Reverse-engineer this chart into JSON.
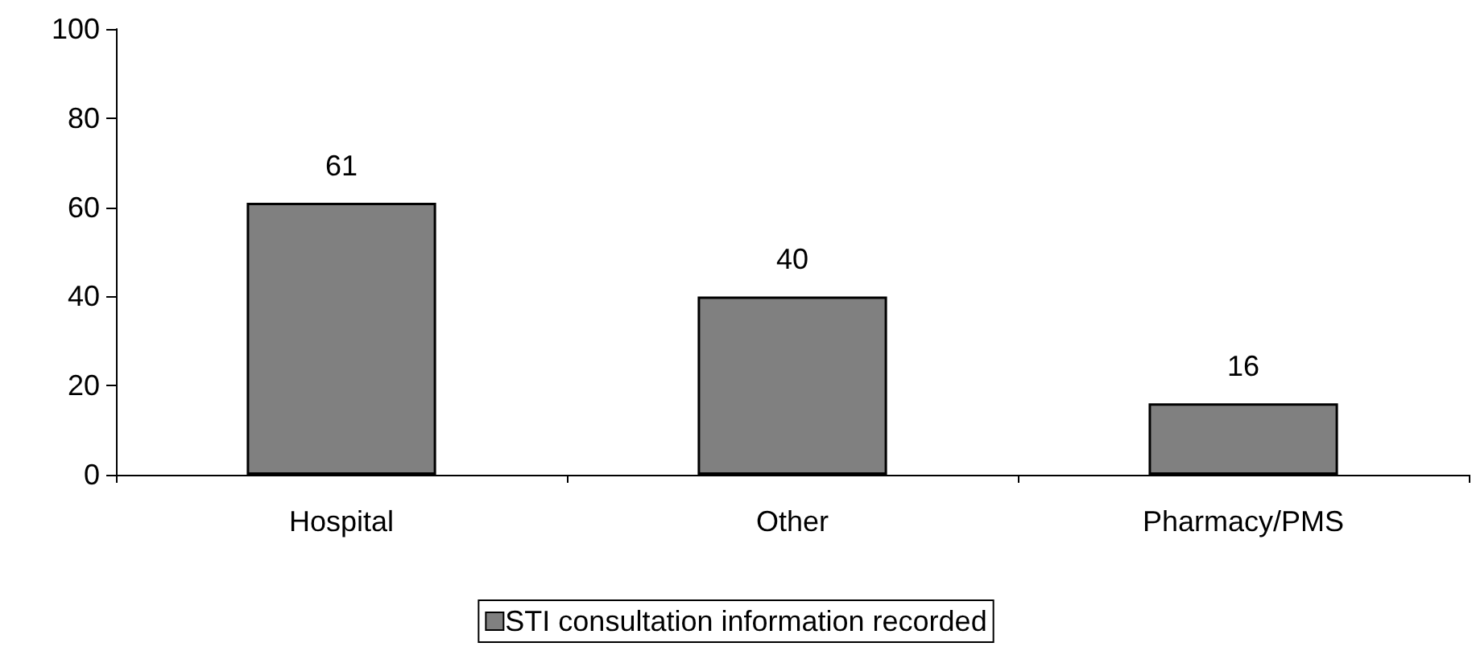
{
  "chart_data": {
    "type": "bar",
    "categories": [
      "Hospital",
      "Other",
      "Pharmacy/PMS"
    ],
    "series": [
      {
        "name": "STI consultation information recorded",
        "color": "#808080",
        "values": [
          61,
          40,
          16
        ]
      }
    ],
    "ylim": [
      0,
      100
    ],
    "yticks": [
      0,
      20,
      40,
      60,
      80,
      100
    ],
    "grid": false,
    "legend": "bottom",
    "data_labels": true
  }
}
